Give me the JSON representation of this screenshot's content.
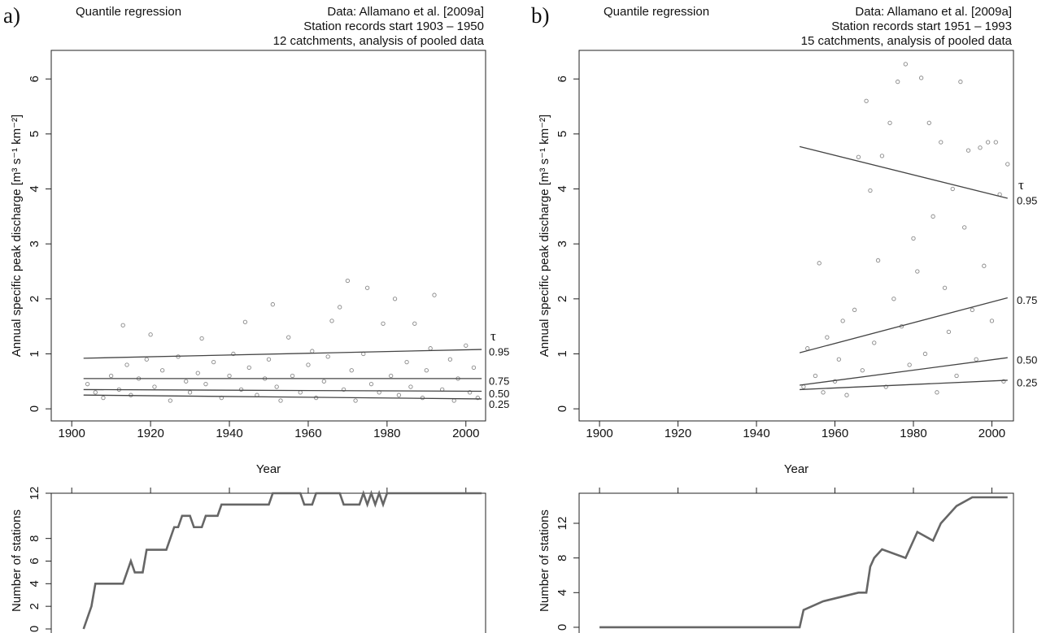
{
  "chart_data": [
    {
      "type": "scatter",
      "panel_label": "a)",
      "title": "Quantile regression",
      "annotations": [
        "Data: Allamano et al. [2009a]",
        "Station records start 1903 – 1950",
        "12 catchments, analysis of pooled data"
      ],
      "x_label": "Year",
      "y_label": "Annual specific peak discharge [m³ s⁻¹ km⁻²]",
      "xlim": [
        1894.8,
        2005
      ],
      "xticks": [
        1900,
        1920,
        1940,
        1960,
        1980,
        2000
      ],
      "ylim": [
        -0.22,
        6.52
      ],
      "yticks": [
        0,
        1,
        2,
        3,
        4,
        5,
        6
      ],
      "points": {
        "color": "#888888",
        "x": [
          1904,
          1906,
          1908,
          1910,
          1912,
          1913,
          1914,
          1915,
          1917,
          1919,
          1920,
          1921,
          1923,
          1925,
          1927,
          1929,
          1930,
          1932,
          1933,
          1934,
          1936,
          1938,
          1940,
          1941,
          1943,
          1944,
          1945,
          1947,
          1949,
          1950,
          1951,
          1952,
          1953,
          1955,
          1956,
          1958,
          1960,
          1961,
          1962,
          1964,
          1965,
          1966,
          1968,
          1969,
          1970,
          1971,
          1972,
          1974,
          1975,
          1976,
          1978,
          1979,
          1981,
          1982,
          1983,
          1985,
          1986,
          1987,
          1989,
          1990,
          1991,
          1992,
          1994,
          1996,
          1997,
          1998,
          2000,
          2001,
          2002,
          2003
        ],
        "values": [
          0.45,
          0.3,
          0.2,
          0.6,
          0.35,
          1.52,
          0.8,
          0.25,
          0.55,
          0.9,
          1.35,
          0.4,
          0.7,
          0.15,
          0.95,
          0.5,
          0.3,
          0.65,
          1.28,
          0.45,
          0.85,
          0.2,
          0.6,
          1.0,
          0.35,
          1.58,
          0.75,
          0.25,
          0.55,
          0.9,
          1.9,
          0.4,
          0.15,
          1.3,
          0.6,
          0.3,
          0.8,
          1.05,
          0.2,
          0.5,
          0.95,
          1.6,
          1.85,
          0.35,
          2.33,
          0.7,
          0.15,
          1.0,
          2.2,
          0.45,
          0.3,
          1.55,
          0.6,
          2.0,
          0.25,
          0.85,
          0.4,
          1.55,
          0.2,
          0.7,
          1.1,
          2.07,
          0.35,
          0.9,
          0.15,
          0.55,
          1.15,
          0.3,
          0.75,
          0.2
        ]
      },
      "quantiles": {
        "label": "τ",
        "color": "#444444",
        "series": [
          {
            "name": "0.95",
            "x": [
              1903,
              2004
            ],
            "values": [
              0.92,
              1.08
            ]
          },
          {
            "name": "0.75",
            "x": [
              1903,
              2004
            ],
            "values": [
              0.55,
              0.55
            ]
          },
          {
            "name": "0.50",
            "x": [
              1903,
              2004
            ],
            "values": [
              0.35,
              0.32
            ]
          },
          {
            "name": "0.25",
            "x": [
              1903,
              2004
            ],
            "values": [
              0.25,
              0.18
            ]
          }
        ]
      }
    },
    {
      "type": "line",
      "y_label": "Number of stations",
      "color": "#666666",
      "xlim": [
        1894.8,
        2005
      ],
      "xticks": [
        1900,
        1920,
        1940,
        1960,
        1980,
        2000
      ],
      "ylim": [
        -0.36,
        12
      ],
      "yticks": [
        0,
        2,
        4,
        6,
        8,
        12
      ],
      "x": [
        1903,
        1905,
        1906,
        1913,
        1914,
        1915,
        1916,
        1918,
        1919,
        1924,
        1925,
        1926,
        1927,
        1928,
        1930,
        1931,
        1933,
        1934,
        1937,
        1938,
        1950,
        1951,
        1958,
        1959,
        1961,
        1962,
        1968,
        1969,
        1973,
        1974,
        1975,
        1976,
        1977,
        1978,
        1979,
        1980,
        2004
      ],
      "values": [
        0,
        2,
        4,
        4,
        5,
        6,
        5,
        5,
        7,
        7,
        8,
        9,
        9,
        10,
        10,
        9,
        9,
        10,
        10,
        11,
        11,
        12,
        12,
        11,
        11,
        12,
        12,
        11,
        11,
        12,
        11,
        12,
        11,
        12,
        11,
        12,
        12
      ]
    },
    {
      "type": "scatter",
      "panel_label": "b)",
      "title": "Quantile regression",
      "annotations": [
        "Data: Allamano et al. [2009a]",
        "Station records start 1951 – 1993",
        "15 catchments, analysis of pooled data"
      ],
      "x_label": "Year",
      "y_label": "Annual specific peak discharge [m³ s⁻¹ km⁻²]",
      "xlim": [
        1894.8,
        2005.5
      ],
      "xticks": [
        1900,
        1920,
        1940,
        1960,
        1980,
        2000
      ],
      "ylim": [
        -0.22,
        6.52
      ],
      "yticks": [
        0,
        1,
        2,
        3,
        4,
        5,
        6
      ],
      "points": {
        "color": "#888888",
        "x": [
          1952,
          1953,
          1955,
          1956,
          1957,
          1958,
          1960,
          1961,
          1962,
          1963,
          1965,
          1966,
          1967,
          1968,
          1969,
          1970,
          1971,
          1972,
          1973,
          1974,
          1975,
          1976,
          1977,
          1978,
          1979,
          1980,
          1981,
          1982,
          1983,
          1984,
          1985,
          1986,
          1987,
          1988,
          1989,
          1990,
          1991,
          1992,
          1993,
          1994,
          1995,
          1996,
          1997,
          1998,
          1999,
          2000,
          2001,
          2002,
          2003,
          2004
        ],
        "values": [
          0.4,
          1.1,
          0.6,
          2.65,
          0.3,
          1.3,
          0.5,
          0.9,
          1.6,
          0.25,
          1.8,
          4.58,
          0.7,
          5.6,
          3.97,
          1.2,
          2.7,
          4.6,
          0.4,
          5.2,
          2.0,
          5.95,
          1.5,
          6.27,
          0.8,
          3.1,
          2.5,
          6.02,
          1.0,
          5.2,
          3.5,
          0.3,
          4.85,
          2.2,
          1.4,
          4.0,
          0.6,
          5.95,
          3.3,
          4.7,
          1.8,
          0.9,
          4.75,
          2.6,
          4.85,
          1.6,
          4.85,
          3.9,
          0.5,
          4.45
        ]
      },
      "quantiles": {
        "label": "τ",
        "color": "#444444",
        "series": [
          {
            "name": "0.95",
            "x": [
              1951,
              2004
            ],
            "values": [
              4.77,
              3.83
            ]
          },
          {
            "name": "0.75",
            "x": [
              1951,
              2004
            ],
            "values": [
              1.02,
              2.02
            ]
          },
          {
            "name": "0.50",
            "x": [
              1951,
              2004
            ],
            "values": [
              0.43,
              0.93
            ]
          },
          {
            "name": "0.25",
            "x": [
              1951,
              2004
            ],
            "values": [
              0.35,
              0.52
            ]
          }
        ]
      }
    },
    {
      "type": "line",
      "y_label": "Number of stations",
      "color": "#666666",
      "xlim": [
        1894.8,
        2005.5
      ],
      "xticks": [
        1900,
        1920,
        1940,
        1960,
        1980,
        2000
      ],
      "ylim": [
        -0.66,
        15.47
      ],
      "yticks": [
        0,
        4,
        8,
        12
      ],
      "x": [
        1900,
        1951,
        1952,
        1957,
        1966,
        1968,
        1969,
        1970,
        1972,
        1978,
        1979,
        1981,
        1985,
        1987,
        1991,
        1995,
        2004
      ],
      "values": [
        0,
        0,
        2,
        3,
        4,
        4,
        7,
        8,
        9,
        8,
        9,
        11,
        10,
        12,
        14,
        15,
        15
      ]
    }
  ]
}
